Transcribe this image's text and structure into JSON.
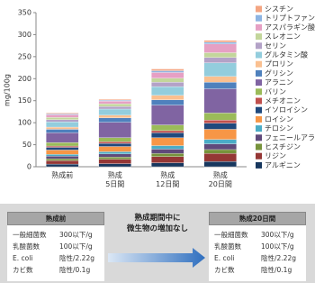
{
  "chart_data": {
    "type": "stacked_bar",
    "ylabel": "mg/100g",
    "categories": [
      "熟成前",
      "熟成\n5日間",
      "熟成\n12日間",
      "熟成\n20日間"
    ],
    "ylim": [
      0,
      350
    ],
    "yticks": [
      0,
      50,
      100,
      150,
      200,
      250,
      300,
      350
    ],
    "grid": false,
    "legend": "right",
    "series": [
      {
        "name": "シスチン",
        "color": "#f4a582",
        "values": [
          2,
          2,
          4,
          4
        ]
      },
      {
        "name": "トリプトファン",
        "color": "#8db4e2",
        "values": [
          2,
          2,
          4,
          4
        ]
      },
      {
        "name": "アスパラギン酸",
        "color": "#e6a0c4",
        "values": [
          6,
          6,
          13,
          20
        ]
      },
      {
        "name": "スレオニン",
        "color": "#c3d69b",
        "values": [
          5,
          6,
          9,
          11
        ]
      },
      {
        "name": "セリン",
        "color": "#b3a2c7",
        "values": [
          5,
          6,
          10,
          12
        ]
      },
      {
        "name": "グルタミン酸",
        "color": "#93cddd",
        "values": [
          12,
          14,
          20,
          31
        ]
      },
      {
        "name": "プロリン",
        "color": "#fac090",
        "values": [
          5,
          6,
          10,
          13
        ]
      },
      {
        "name": "グリシン",
        "color": "#4f81bd",
        "values": [
          8,
          10,
          12,
          15
        ]
      },
      {
        "name": "アラニン",
        "color": "#8064a2",
        "values": [
          22,
          35,
          45,
          55
        ]
      },
      {
        "name": "バリン",
        "color": "#9bbb59",
        "values": [
          8,
          9,
          13,
          16
        ]
      },
      {
        "name": "メチオニン",
        "color": "#c0504d",
        "values": [
          3,
          4,
          5,
          7
        ]
      },
      {
        "name": "イソロイシン",
        "color": "#1f497d",
        "values": [
          6,
          7,
          11,
          14
        ]
      },
      {
        "name": "ロイシン",
        "color": "#f79646",
        "values": [
          10,
          12,
          18,
          23
        ]
      },
      {
        "name": "チロシン",
        "color": "#4bacc6",
        "values": [
          4,
          5,
          8,
          10
        ]
      },
      {
        "name": "フェニールアラニン",
        "color": "#604a7b",
        "values": [
          6,
          7,
          10,
          13
        ]
      },
      {
        "name": "ヒスチジン",
        "color": "#77933c",
        "values": [
          4,
          5,
          7,
          9
        ]
      },
      {
        "name": "リジン",
        "color": "#953735",
        "values": [
          8,
          10,
          14,
          18
        ]
      },
      {
        "name": "アルギニン",
        "color": "#17375e",
        "values": [
          6,
          7,
          9,
          12
        ]
      }
    ]
  },
  "panel": {
    "before": {
      "title": "熟成前",
      "rows": [
        [
          "一般細菌数",
          "300以下/g"
        ],
        [
          "乳酸菌数",
          "100以下/g"
        ],
        [
          "E. coli",
          "陰性/2.22g"
        ],
        [
          "カビ数",
          "陰性/0.1g"
        ]
      ]
    },
    "message": "熟成期間中に\n微生物の増加なし",
    "after": {
      "title": "熟成20日間",
      "rows": [
        [
          "一般細菌数",
          "300以下/g"
        ],
        [
          "乳酸菌数",
          "100以下/g"
        ],
        [
          "E. coli",
          "陰性/2.22g"
        ],
        [
          "カビ数",
          "陰性/0.1g"
        ]
      ]
    }
  }
}
